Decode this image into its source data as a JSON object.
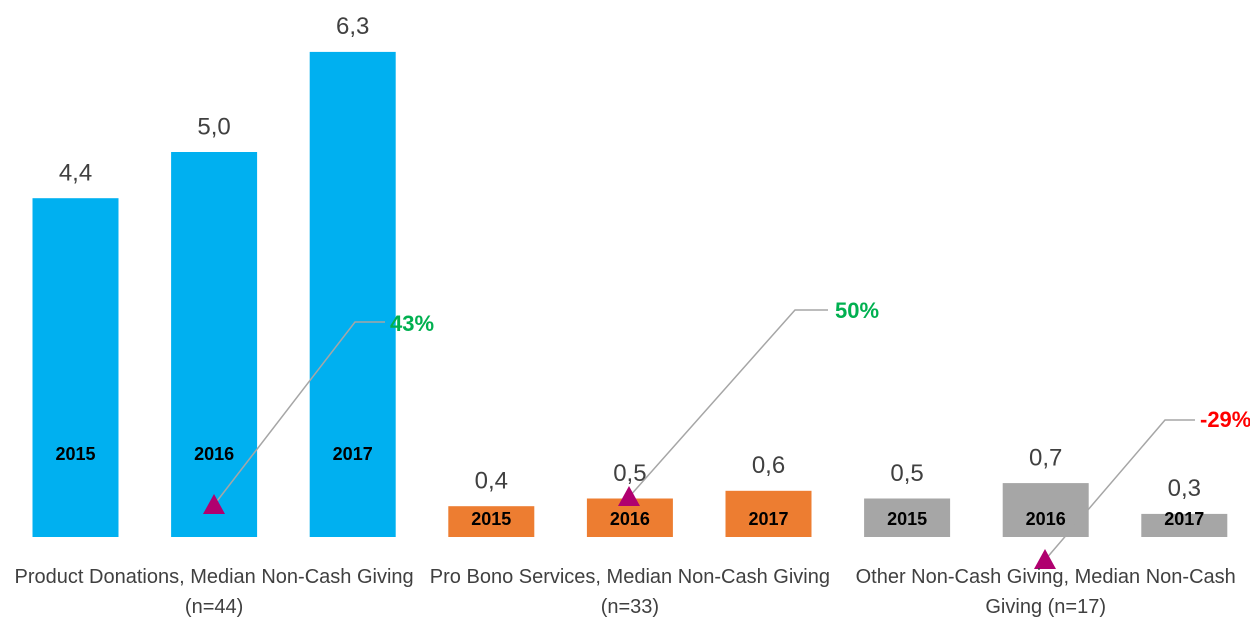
{
  "chart_data": {
    "type": "bar",
    "categories": [
      "Product Donations, Median Non-Cash Giving (n=44)",
      "Pro Bono Services, Median Non-Cash Giving (n=33)",
      "Other Non-Cash Giving, Median Non-Cash Giving (n=17)"
    ],
    "category_colors": [
      "#00b0f0",
      "#ed7d31",
      "#a6a6a6"
    ],
    "series": [
      {
        "name": "2015",
        "values": [
          4.4,
          0.4,
          0.5
        ],
        "value_labels": [
          "4,4",
          "0,4",
          "0,5"
        ]
      },
      {
        "name": "2016",
        "values": [
          5.0,
          0.5,
          0.7
        ],
        "value_labels": [
          "5,0",
          "0,5",
          "0,7"
        ]
      },
      {
        "name": "2017",
        "values": [
          6.3,
          0.6,
          0.3
        ],
        "value_labels": [
          "6,3",
          "0,6",
          "0,3"
        ]
      }
    ],
    "ylim": [
      0,
      7
    ],
    "annotations": [
      {
        "text": "43%",
        "color": "#00b050"
      },
      {
        "text": "50%",
        "color": "#00b050"
      },
      {
        "text": "-29%",
        "color": "#ff0000"
      }
    ]
  }
}
